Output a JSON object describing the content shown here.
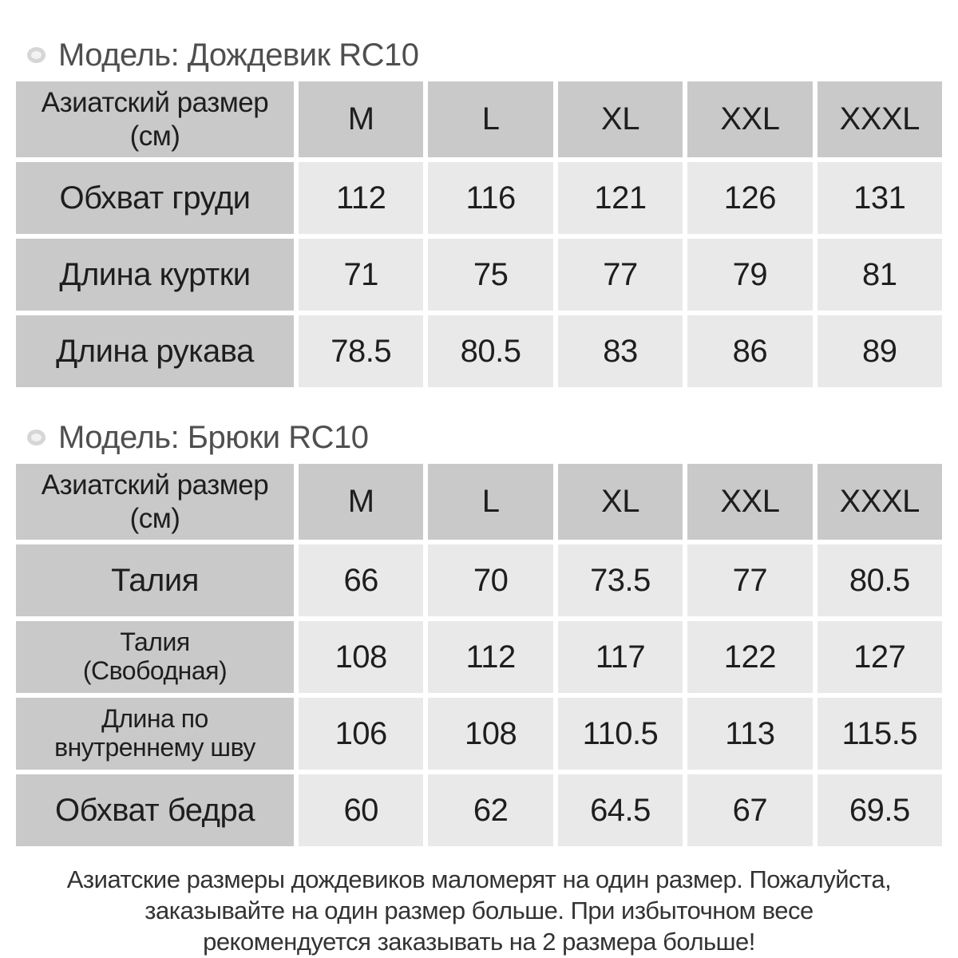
{
  "tables": [
    {
      "title": "Модель: Дождевик RC10",
      "corner_label": "Азиатский размер\n(см)",
      "sizes": [
        "M",
        "L",
        "XL",
        "XXL",
        "XXXL"
      ],
      "rows": [
        {
          "label": "Обхват груди",
          "values": [
            "112",
            "116",
            "121",
            "126",
            "131"
          ]
        },
        {
          "label": "Длина куртки",
          "values": [
            "71",
            "75",
            "77",
            "79",
            "81"
          ]
        },
        {
          "label": "Длина рукава",
          "values": [
            "78.5",
            "80.5",
            "83",
            "86",
            "89"
          ]
        }
      ]
    },
    {
      "title": "Модель: Брюки RC10",
      "corner_label": "Азиатский размер\n(см)",
      "sizes": [
        "M",
        "L",
        "XL",
        "XXL",
        "XXXL"
      ],
      "rows": [
        {
          "label": "Талия",
          "values": [
            "66",
            "70",
            "73.5",
            "77",
            "80.5"
          ]
        },
        {
          "label": "Талия\n(Свободная)",
          "values": [
            "108",
            "112",
            "117",
            "122",
            "127"
          ]
        },
        {
          "label": "Длина по\nвнутреннему шву",
          "values": [
            "106",
            "108",
            "110.5",
            "113",
            "115.5"
          ]
        },
        {
          "label": "Обхват бедра",
          "values": [
            "60",
            "62",
            "64.5",
            "67",
            "69.5"
          ]
        }
      ]
    }
  ],
  "footer": {
    "lines": [
      "Азиатские размеры дождевиков маломерят на один размер. Пожалуйста,",
      "заказывайте на один размер больше. При избыточном весе",
      "рекомендуется заказывать на 2 размера больше!"
    ]
  },
  "colors": {
    "header_cell": "#c9c9c9",
    "label_cell": "#c9c9c9",
    "value_cell": "#e9e9e9",
    "cell_text": "#1e1e1e",
    "title_text": "#4f4f4f",
    "footer_text": "#333333",
    "background": "#ffffff"
  },
  "icons": {
    "bullet": "gray-ring-dot"
  },
  "chart_data": [
    {
      "type": "table",
      "title": "Модель: Дождевик RC10",
      "columns": [
        "Азиатский размер (см)",
        "M",
        "L",
        "XL",
        "XXL",
        "XXXL"
      ],
      "rows": [
        [
          "Обхват груди",
          112,
          116,
          121,
          126,
          131
        ],
        [
          "Длина куртки",
          71,
          75,
          77,
          79,
          81
        ],
        [
          "Длина рукава",
          78.5,
          80.5,
          83,
          86,
          89
        ]
      ]
    },
    {
      "type": "table",
      "title": "Модель: Брюки RC10",
      "columns": [
        "Азиатский размер (см)",
        "M",
        "L",
        "XL",
        "XXL",
        "XXXL"
      ],
      "rows": [
        [
          "Талия",
          66,
          70,
          73.5,
          77,
          80.5
        ],
        [
          "Талия (Свободная)",
          108,
          112,
          117,
          122,
          127
        ],
        [
          "Длина по внутреннему шву",
          106,
          108,
          110.5,
          113,
          115.5
        ],
        [
          "Обхват бедра",
          60,
          62,
          64.5,
          67,
          69.5
        ]
      ]
    }
  ]
}
